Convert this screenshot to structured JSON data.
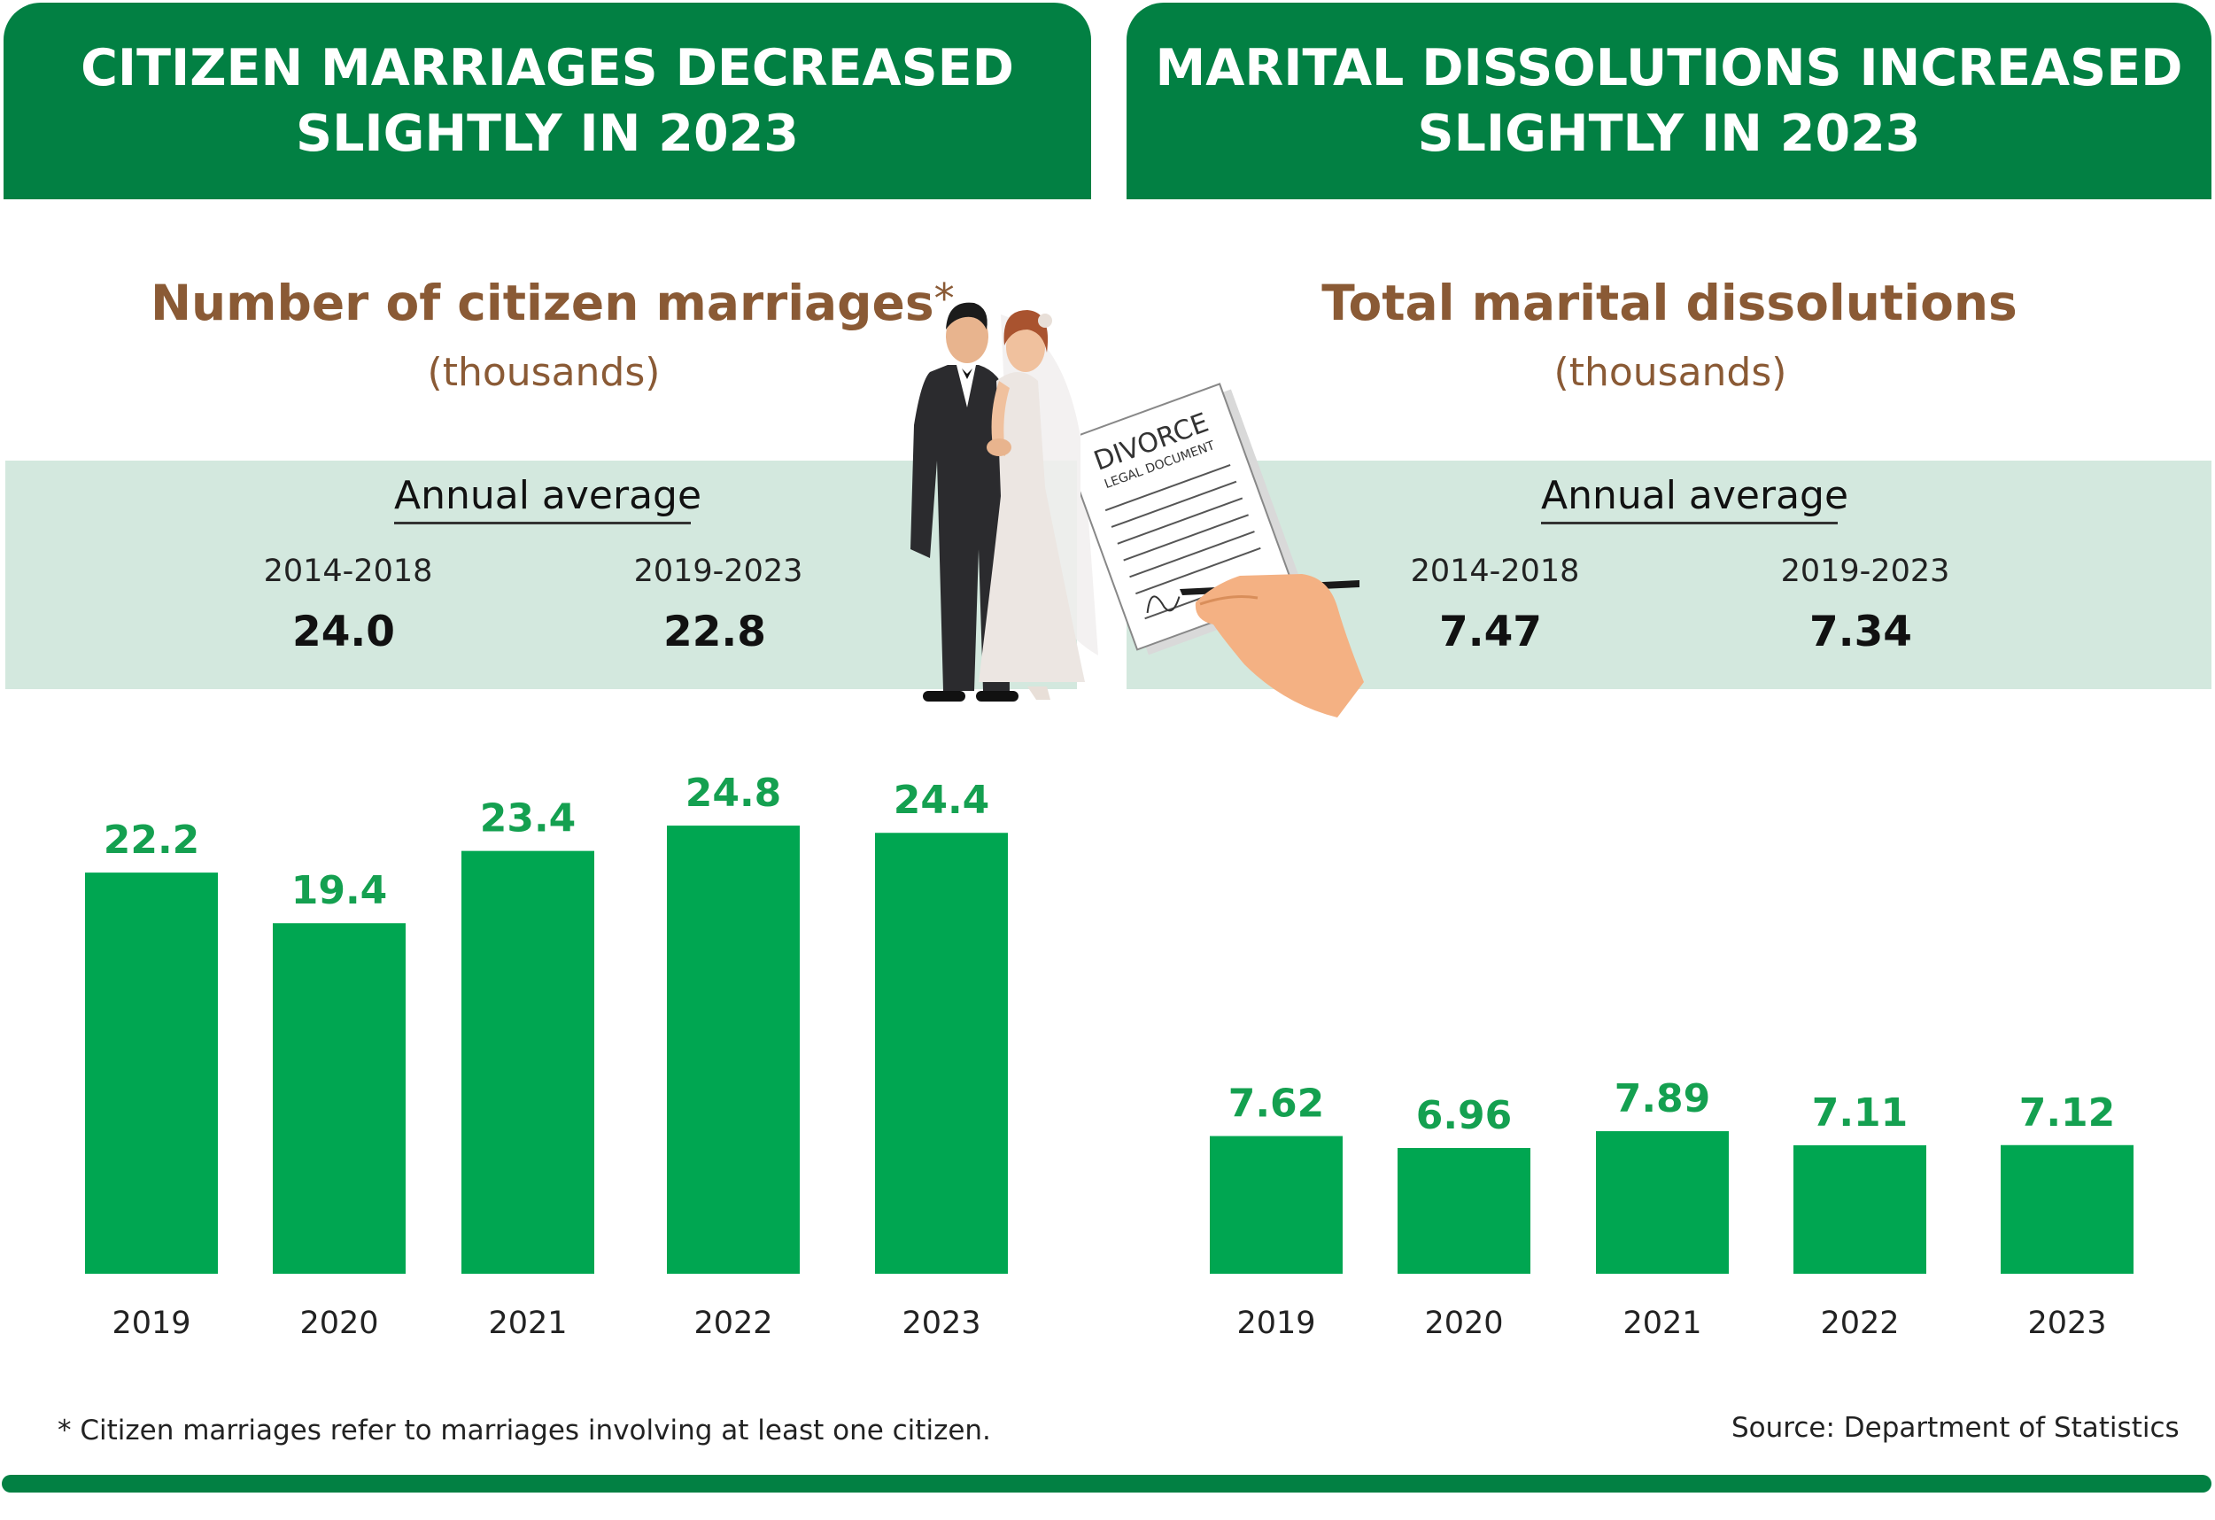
{
  "left_panel": {
    "banner_title": "CITIZEN MARRIAGES DECREASED\nSLIGHTLY IN 2023",
    "subtitle": "Number of citizen marriages",
    "asterisk": "*",
    "units": "(thousands)",
    "annual_average_label": "Annual average",
    "periods": [
      {
        "label": "2014-2018",
        "value": "24.0"
      },
      {
        "label": "2019-2023",
        "value": "22.8"
      }
    ]
  },
  "right_panel": {
    "banner_title": "MARITAL DISSOLUTIONS INCREASED\nSLIGHTLY IN 2023",
    "subtitle": "Total marital dissolutions",
    "units": "(thousands)",
    "annual_average_label": "Annual average",
    "periods": [
      {
        "label": "2014-2018",
        "value": "7.47"
      },
      {
        "label": "2019-2023",
        "value": "7.34"
      }
    ]
  },
  "illustrations": {
    "document_title": "DIVORCE",
    "document_subtitle": "LEGAL DOCUMENT"
  },
  "footnote": "* Citizen marriages refer to marriages involving at least one citizen.",
  "source": "Source: Department of Statistics",
  "colors": {
    "banner": "#028043",
    "bar": "#00a651",
    "label": "#14a050",
    "subtitle": "#8a5a35",
    "band": "#d3e8de"
  },
  "chart_data": [
    {
      "type": "bar",
      "title": "Number of citizen marriages (thousands)",
      "categories": [
        "2019",
        "2020",
        "2021",
        "2022",
        "2023"
      ],
      "values": [
        22.2,
        19.4,
        23.4,
        24.8,
        24.4
      ],
      "value_labels": [
        "22.2",
        "19.4",
        "23.4",
        "24.8",
        "24.4"
      ],
      "ylim": [
        0,
        25
      ]
    },
    {
      "type": "bar",
      "title": "Total marital dissolutions (thousands)",
      "categories": [
        "2019",
        "2020",
        "2021",
        "2022",
        "2023"
      ],
      "values": [
        7.62,
        6.96,
        7.89,
        7.11,
        7.12
      ],
      "value_labels": [
        "7.62",
        "6.96",
        "7.89",
        "7.11",
        "7.12"
      ],
      "ylim": [
        0,
        25
      ]
    }
  ]
}
